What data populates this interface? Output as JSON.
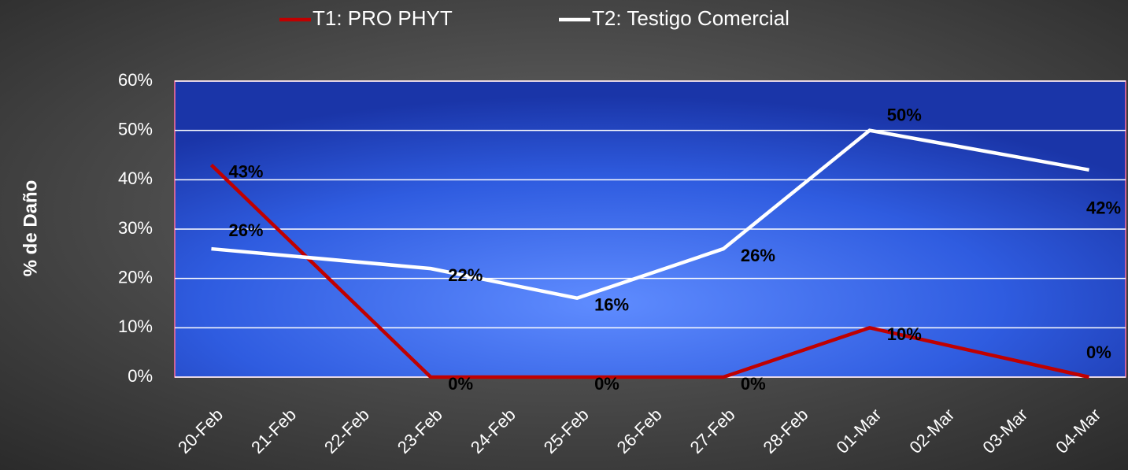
{
  "chart_data": {
    "type": "line",
    "y_label": "% de Daño",
    "x": [
      "20-Feb",
      "23-Feb",
      "25-Feb",
      "27-Feb",
      "01-Mar",
      "04-Mar"
    ],
    "xticks": [
      "20-Feb",
      "21-Feb",
      "22-Feb",
      "23-Feb",
      "24-Feb",
      "25-Feb",
      "26-Feb",
      "27-Feb",
      "28-Feb",
      "01-Mar",
      "02-Mar",
      "03-Mar",
      "04-Mar"
    ],
    "series": [
      {
        "name": "T1: PRO PHYT",
        "color": "#c00000",
        "values": [
          43,
          0,
          0,
          0,
          10,
          0
        ],
        "value_labels": [
          "43%",
          "0%",
          "0%",
          "0%",
          "10%",
          "0%"
        ]
      },
      {
        "name": "T2: Testigo Comercial",
        "color": "#ffffff",
        "values": [
          26,
          22,
          16,
          26,
          50,
          42
        ],
        "value_labels": [
          "26%",
          "22%",
          "16%",
          "26%",
          "50%",
          "42%"
        ]
      }
    ],
    "ylim": [
      0,
      60
    ],
    "yticks": [
      {
        "value": 0,
        "label": "0%"
      },
      {
        "value": 10,
        "label": "10%"
      },
      {
        "value": 20,
        "label": "20%"
      },
      {
        "value": 30,
        "label": "30%"
      },
      {
        "value": 40,
        "label": "40%"
      },
      {
        "value": 50,
        "label": "50%"
      },
      {
        "value": 60,
        "label": "60%"
      }
    ],
    "grid": true,
    "legend": "top"
  }
}
